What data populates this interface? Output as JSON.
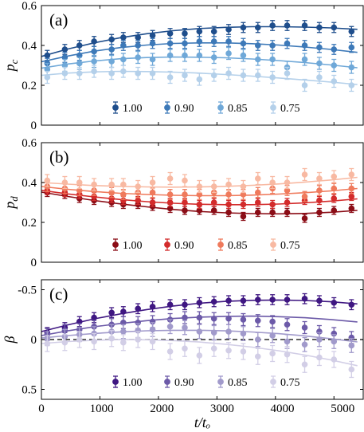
{
  "figure": {
    "xlabel": "t/tₒ",
    "x_ticks": [
      "0",
      "1000",
      "2000",
      "3000",
      "4000",
      "5000"
    ],
    "x_tick_values": [
      0,
      1000,
      2000,
      3000,
      4000,
      5000
    ]
  },
  "chart_data": [
    {
      "type": "scatter",
      "panel_label": "(a)",
      "ylabel": "p_c",
      "ylim": [
        0,
        0.6
      ],
      "xlim": [
        0,
        5500
      ],
      "yticks": [
        0,
        0.2,
        0.4,
        0.6
      ],
      "ytick_labels": [
        "0",
        "0.2",
        "0.4",
        "0.6"
      ],
      "legend_position": "bottom-center",
      "reference_line": null,
      "series": [
        {
          "name": "1.00",
          "color": "#1f4e8c",
          "x": [
            100,
            400,
            650,
            900,
            1200,
            1400,
            1650,
            1900,
            2200,
            2450,
            2700,
            2950,
            3200,
            3450,
            3700,
            3950,
            4200,
            4500,
            4750,
            5000,
            5300
          ],
          "y": [
            0.35,
            0.38,
            0.4,
            0.42,
            0.43,
            0.44,
            0.44,
            0.45,
            0.46,
            0.46,
            0.47,
            0.47,
            0.48,
            0.49,
            0.49,
            0.5,
            0.5,
            0.5,
            0.49,
            0.49,
            0.47
          ],
          "err": 0.025,
          "fit": [
            0.345,
            0.382,
            0.413,
            0.439,
            0.459,
            0.474,
            0.485,
            0.491,
            0.494,
            0.494,
            0.492,
            0.488,
            0.481
          ]
        },
        {
          "name": "0.90",
          "color": "#3d79b8",
          "x": [
            100,
            400,
            650,
            900,
            1200,
            1400,
            1650,
            1900,
            2200,
            2450,
            2700,
            2950,
            3200,
            3450,
            3700,
            3950,
            4200,
            4500,
            4750,
            5000,
            5300
          ],
          "y": [
            0.31,
            0.34,
            0.35,
            0.37,
            0.38,
            0.4,
            0.4,
            0.41,
            0.41,
            0.41,
            0.42,
            0.42,
            0.42,
            0.41,
            0.4,
            0.4,
            0.41,
            0.4,
            0.39,
            0.38,
            0.39
          ],
          "err": 0.025,
          "fit": [
            0.318,
            0.347,
            0.371,
            0.389,
            0.402,
            0.41,
            0.413,
            0.413,
            0.409,
            0.402,
            0.392,
            0.38,
            0.365
          ]
        },
        {
          "name": "0.85",
          "color": "#6fa8d8",
          "x": [
            100,
            400,
            650,
            900,
            1200,
            1400,
            1650,
            1900,
            2200,
            2450,
            2700,
            2950,
            3200,
            3450,
            3700,
            3950,
            4200,
            4500,
            4750,
            5000,
            5300
          ],
          "y": [
            0.28,
            0.3,
            0.31,
            0.32,
            0.32,
            0.33,
            0.34,
            0.33,
            0.35,
            0.35,
            0.35,
            0.34,
            0.36,
            0.35,
            0.33,
            0.33,
            0.29,
            0.33,
            0.31,
            0.3,
            0.29
          ],
          "err": 0.03,
          "fit": [
            0.286,
            0.307,
            0.322,
            0.333,
            0.339,
            0.342,
            0.341,
            0.338,
            0.332,
            0.324,
            0.314,
            0.302,
            0.288
          ]
        },
        {
          "name": "0.75",
          "color": "#b4d0ea",
          "x": [
            100,
            400,
            650,
            900,
            1200,
            1400,
            1650,
            1900,
            2200,
            2450,
            2700,
            2950,
            3200,
            3450,
            3700,
            3950,
            4200,
            4500,
            4750,
            5000,
            5300
          ],
          "y": [
            0.24,
            0.26,
            0.26,
            0.27,
            0.26,
            0.27,
            0.26,
            0.26,
            0.24,
            0.25,
            0.23,
            0.25,
            0.26,
            0.25,
            0.25,
            0.24,
            0.26,
            0.2,
            0.24,
            0.22,
            0.2
          ],
          "err": 0.03,
          "fit": [
            0.25,
            0.261,
            0.267,
            0.27,
            0.269,
            0.266,
            0.261,
            0.254,
            0.246,
            0.237,
            0.227,
            0.216,
            0.204
          ]
        }
      ]
    },
    {
      "type": "scatter",
      "panel_label": "(b)",
      "ylabel": "p_d",
      "ylim": [
        0,
        0.6
      ],
      "xlim": [
        0,
        5500
      ],
      "yticks": [
        0,
        0.2,
        0.4,
        0.6
      ],
      "ytick_labels": [
        "0",
        "0.2",
        "0.4",
        "0.6"
      ],
      "legend_position": "bottom-center",
      "reference_line": null,
      "series": [
        {
          "name": "1.00",
          "color": "#8b0d16",
          "x": [
            100,
            400,
            650,
            900,
            1200,
            1400,
            1650,
            1900,
            2200,
            2450,
            2700,
            2950,
            3200,
            3450,
            3700,
            3950,
            4200,
            4500,
            4750,
            5000,
            5300
          ],
          "y": [
            0.35,
            0.34,
            0.32,
            0.31,
            0.3,
            0.29,
            0.29,
            0.28,
            0.27,
            0.26,
            0.26,
            0.26,
            0.25,
            0.23,
            0.25,
            0.25,
            0.25,
            0.22,
            0.25,
            0.26,
            0.27
          ],
          "err": 0.02,
          "fit": [
            0.352,
            0.33,
            0.31,
            0.293,
            0.278,
            0.265,
            0.255,
            0.248,
            0.244,
            0.243,
            0.245,
            0.251,
            0.26
          ]
        },
        {
          "name": "0.90",
          "color": "#d32b2b",
          "x": [
            100,
            400,
            650,
            900,
            1200,
            1400,
            1650,
            1900,
            2200,
            2450,
            2700,
            2950,
            3200,
            3450,
            3700,
            3950,
            4200,
            4500,
            4750,
            5000,
            5300
          ],
          "y": [
            0.36,
            0.35,
            0.34,
            0.33,
            0.32,
            0.31,
            0.31,
            0.3,
            0.3,
            0.3,
            0.29,
            0.3,
            0.29,
            0.29,
            0.3,
            0.29,
            0.3,
            0.31,
            0.31,
            0.32,
            0.33
          ],
          "err": 0.02,
          "fit": [
            0.361,
            0.343,
            0.328,
            0.315,
            0.304,
            0.296,
            0.291,
            0.289,
            0.289,
            0.292,
            0.298,
            0.307,
            0.318
          ]
        },
        {
          "name": "0.85",
          "color": "#ef7a5c",
          "x": [
            100,
            400,
            650,
            900,
            1200,
            1400,
            1650,
            1900,
            2200,
            2450,
            2700,
            2950,
            3200,
            3450,
            3700,
            3950,
            4200,
            4500,
            4750,
            5000,
            5300
          ],
          "y": [
            0.38,
            0.37,
            0.36,
            0.36,
            0.35,
            0.34,
            0.35,
            0.35,
            0.34,
            0.34,
            0.34,
            0.35,
            0.34,
            0.34,
            0.35,
            0.37,
            0.36,
            0.33,
            0.36,
            0.37,
            0.37
          ],
          "err": 0.025,
          "fit": [
            0.38,
            0.366,
            0.355,
            0.346,
            0.34,
            0.336,
            0.334,
            0.334,
            0.337,
            0.342,
            0.349,
            0.358,
            0.37
          ]
        },
        {
          "name": "0.75",
          "color": "#f8b9a2",
          "x": [
            100,
            400,
            650,
            900,
            1200,
            1400,
            1650,
            1900,
            2200,
            2450,
            2700,
            2950,
            3200,
            3450,
            3700,
            3950,
            4200,
            4500,
            4750,
            5000,
            5300
          ],
          "y": [
            0.41,
            0.4,
            0.4,
            0.39,
            0.39,
            0.39,
            0.38,
            0.4,
            0.42,
            0.41,
            0.38,
            0.38,
            0.39,
            0.38,
            0.42,
            0.4,
            0.4,
            0.44,
            0.42,
            0.43,
            0.44
          ],
          "err": 0.03,
          "fit": [
            0.4,
            0.392,
            0.385,
            0.381,
            0.378,
            0.377,
            0.378,
            0.381,
            0.386,
            0.393,
            0.402,
            0.413,
            0.426
          ]
        }
      ]
    },
    {
      "type": "scatter",
      "panel_label": "(c)",
      "ylabel": "β",
      "ylim": [
        0.6,
        -0.6
      ],
      "xlim": [
        0,
        5500
      ],
      "yticks": [
        -0.5,
        0,
        0.5
      ],
      "ytick_labels": [
        "-0.5",
        "0",
        "0.5"
      ],
      "legend_position": "bottom-center",
      "reference_line": {
        "y": 0,
        "style": "dashed",
        "color": "#000000"
      },
      "series": [
        {
          "name": "1.00",
          "color": "#3f1782",
          "x": [
            100,
            400,
            650,
            900,
            1200,
            1400,
            1650,
            1900,
            2200,
            2450,
            2700,
            2950,
            3200,
            3450,
            3700,
            3950,
            4200,
            4500,
            4750,
            5000,
            5300
          ],
          "y": [
            -0.07,
            -0.12,
            -0.18,
            -0.22,
            -0.27,
            -0.28,
            -0.31,
            -0.33,
            -0.35,
            -0.35,
            -0.37,
            -0.38,
            -0.39,
            -0.39,
            -0.4,
            -0.4,
            -0.4,
            -0.41,
            -0.39,
            -0.37,
            -0.35
          ],
          "err": 0.05,
          "fit": [
            -0.08,
            -0.147,
            -0.207,
            -0.258,
            -0.301,
            -0.337,
            -0.364,
            -0.383,
            -0.394,
            -0.397,
            -0.392,
            -0.379,
            -0.358
          ]
        },
        {
          "name": "0.90",
          "color": "#6c5aa8",
          "x": [
            100,
            400,
            650,
            900,
            1200,
            1400,
            1650,
            1900,
            2200,
            2450,
            2700,
            2950,
            3200,
            3450,
            3700,
            3950,
            4200,
            4500,
            4750,
            5000,
            5300
          ],
          "y": [
            -0.05,
            -0.09,
            -0.1,
            -0.13,
            -0.15,
            -0.17,
            -0.17,
            -0.18,
            -0.2,
            -0.22,
            -0.22,
            -0.21,
            -0.21,
            -0.2,
            -0.19,
            -0.18,
            -0.15,
            -0.12,
            -0.08,
            -0.06,
            -0.02
          ],
          "err": 0.06,
          "fit": [
            -0.04,
            -0.087,
            -0.128,
            -0.162,
            -0.19,
            -0.211,
            -0.225,
            -0.233,
            -0.235,
            -0.23,
            -0.219,
            -0.201,
            -0.177
          ]
        },
        {
          "name": "0.85",
          "color": "#a19acb",
          "x": [
            100,
            400,
            650,
            900,
            1200,
            1400,
            1650,
            1900,
            2200,
            2450,
            2700,
            2950,
            3200,
            3450,
            3700,
            3950,
            4200,
            4500,
            4750,
            5000,
            5300
          ],
          "y": [
            -0.01,
            -0.03,
            -0.05,
            -0.06,
            -0.08,
            -0.08,
            -0.09,
            -0.1,
            -0.13,
            -0.12,
            -0.08,
            -0.07,
            -0.08,
            -0.06,
            0.0,
            -0.04,
            0.02,
            0.05,
            0.0,
            0.02,
            0.06
          ],
          "err": 0.07,
          "fit": [
            -0.015,
            -0.04,
            -0.061,
            -0.077,
            -0.088,
            -0.093,
            -0.093,
            -0.087,
            -0.076,
            -0.059,
            -0.037,
            -0.009,
            0.024
          ]
        },
        {
          "name": "0.75",
          "color": "#d2cee6",
          "x": [
            100,
            400,
            650,
            900,
            1200,
            1400,
            1650,
            1900,
            2200,
            2450,
            2700,
            2950,
            3200,
            3450,
            3700,
            3950,
            4200,
            4500,
            4750,
            5000,
            5300
          ],
          "y": [
            0.04,
            0.03,
            0.0,
            0.02,
            -0.01,
            0.03,
            0.0,
            0.02,
            0.12,
            0.09,
            0.16,
            0.09,
            0.11,
            0.12,
            0.17,
            0.14,
            0.15,
            0.25,
            0.18,
            0.2,
            0.3
          ],
          "err": 0.08,
          "fit": [
            0.04,
            0.02,
            0.007,
            0.001,
            0.002,
            0.01,
            0.025,
            0.047,
            0.076,
            0.112,
            0.155,
            0.205,
            0.262
          ]
        }
      ]
    }
  ]
}
